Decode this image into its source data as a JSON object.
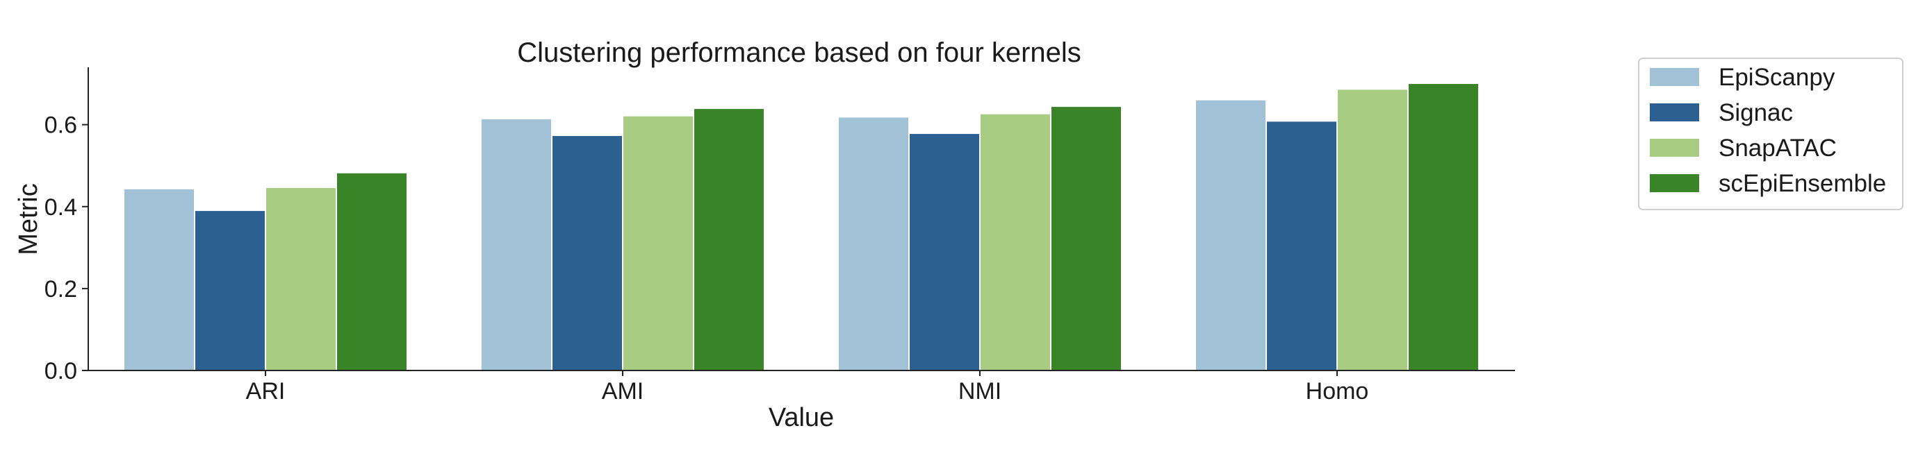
{
  "chart_data": {
    "type": "bar",
    "title": "Clustering performance based on four kernels",
    "xlabel": "Value",
    "ylabel": "Metric",
    "categories": [
      "ARI",
      "AMI",
      "NMI",
      "Homo"
    ],
    "ylim": [
      0,
      0.74
    ],
    "yticks": [
      {
        "value": 0.0,
        "label": "0.0"
      },
      {
        "value": 0.2,
        "label": "0.2"
      },
      {
        "value": 0.4,
        "label": "0.4"
      },
      {
        "value": 0.6,
        "label": "0.6"
      }
    ],
    "grid": false,
    "legend_position": "outside-top-right",
    "series": [
      {
        "name": "EpiScanpy",
        "color": "#a1c2d6",
        "values": [
          0.444,
          0.615,
          0.619,
          0.661
        ]
      },
      {
        "name": "Signac",
        "color": "#2c6091",
        "values": [
          0.391,
          0.574,
          0.579,
          0.609
        ]
      },
      {
        "name": "SnapATAC",
        "color": "#a8cc82",
        "values": [
          0.447,
          0.622,
          0.627,
          0.687
        ]
      },
      {
        "name": "scEpiEnsemble",
        "color": "#3a8428",
        "values": [
          0.483,
          0.64,
          0.645,
          0.701
        ]
      }
    ]
  }
}
